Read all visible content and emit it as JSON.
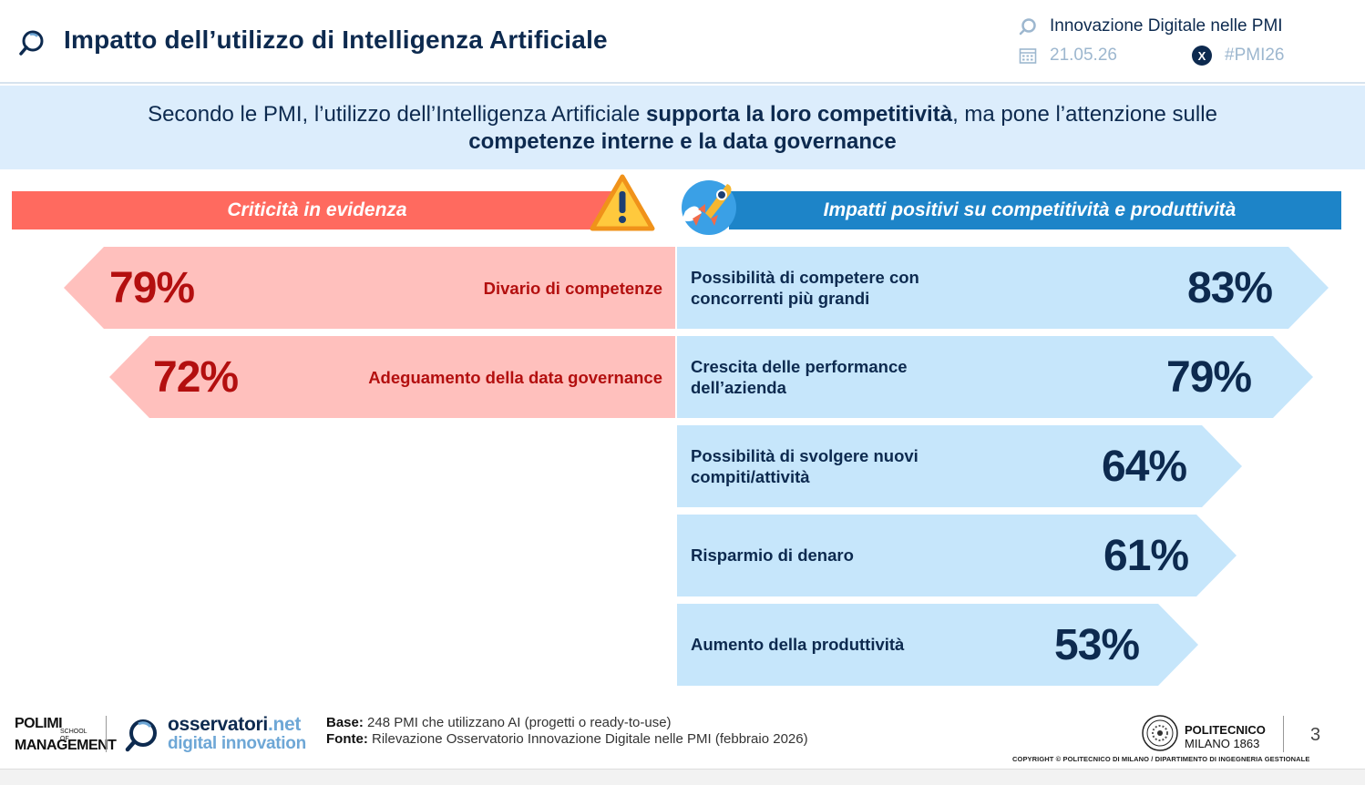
{
  "header": {
    "title": "Impatto dell’utilizzo di Intelligenza Artificiale",
    "event_name": "Innovazione Digitale nelle PMI",
    "date": "21.05.26",
    "hashtag": "#PMI26",
    "x_icon_glyph": "X"
  },
  "banner": {
    "part1": "Secondo le PMI, l’utilizzo dell’Intelligenza Artificiale ",
    "bold1": "supporta la loro competitività",
    "part2": ", ma pone l’attenzione sulle",
    "bold2": "competenze interne e la data governance"
  },
  "left_section": {
    "title": "Criticità in evidenza",
    "items": [
      {
        "value": "79%",
        "label": "Divario di competenze"
      },
      {
        "value": "72%",
        "label": "Adeguamento della data governance"
      }
    ]
  },
  "right_section": {
    "title": "Impatti positivi su competitività e produttività",
    "items": [
      {
        "value": "83%",
        "label_line1": "Possibilità di competere con",
        "label_line2": "concorrenti più grandi"
      },
      {
        "value": "79%",
        "label_line1": "Crescita delle performance",
        "label_line2": "dell’azienda"
      },
      {
        "value": "64%",
        "label_line1": "Possibilità di svolgere nuovi",
        "label_line2": "compiti/attività"
      },
      {
        "value": "61%",
        "label_line1": "Risparmio di denaro",
        "label_line2": ""
      },
      {
        "value": "53%",
        "label_line1": "Aumento della produttività",
        "label_line2": ""
      }
    ]
  },
  "footer": {
    "polimi_line1": "POLIMI",
    "polimi_line2": "MANAGEMENT",
    "polimi_small": "SCHOOL OF",
    "obs_name": "osservatori",
    "obs_tld": ".net",
    "obs_sub": "digital innovation",
    "base_label": "Base:",
    "base_text": "248 PMI che utilizzano AI (progetti o ready-to-use)",
    "fonte_label": "Fonte:",
    "fonte_text": "Rilevazione Osservatorio Innovazione Digitale nelle PMI (febbraio 2026)",
    "poli_name": "POLITECNICO",
    "poli_city": "MILANO 1863",
    "page_number": "3",
    "copyright": "COPYRIGHT © POLITECNICO DI MILANO / DIPARTIMENTO DI INGEGNERIA GESTIONALE"
  },
  "colors": {
    "navy": "#0d2a4f",
    "left_header": "#ff6a5f",
    "left_arrow": "#ffc0bd",
    "left_text": "#b30f0f",
    "right_header": "#1d84c8",
    "right_arrow": "#c6e6fb",
    "banner_bg": "#dcedfc"
  }
}
